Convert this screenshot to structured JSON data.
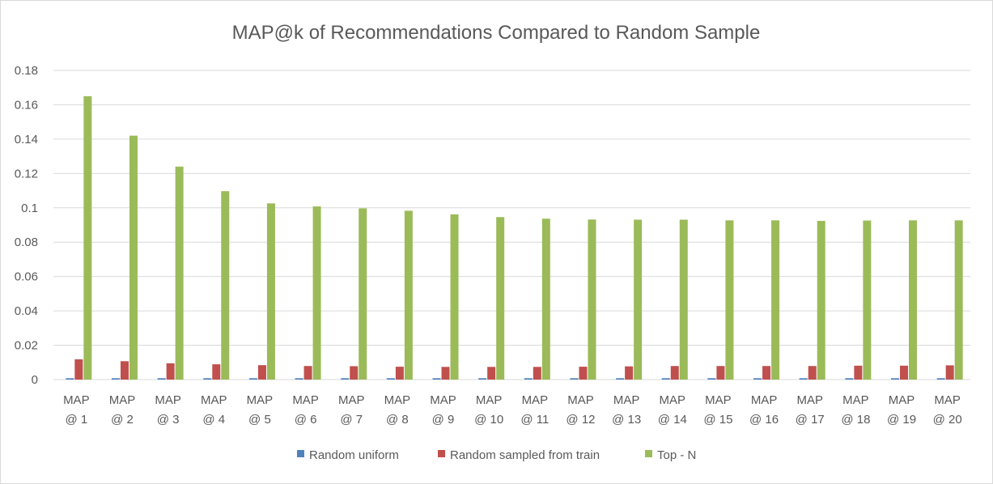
{
  "chart_data": {
    "type": "bar",
    "title": "MAP@k of Recommendations Compared to Random Sample",
    "xlabel": "",
    "ylabel": "",
    "ylim": [
      0,
      0.18
    ],
    "yticks": [
      "0",
      "0.02",
      "0.04",
      "0.06",
      "0.08",
      "0.1",
      "0.12",
      "0.14",
      "0.16",
      "0.18"
    ],
    "ytick_values": [
      0,
      0.02,
      0.04,
      0.06,
      0.08,
      0.1,
      0.12,
      0.14,
      0.16,
      0.18
    ],
    "grid": true,
    "legend_position": "bottom",
    "categories": [
      [
        "MAP",
        "@ 1"
      ],
      [
        "MAP",
        "@ 2"
      ],
      [
        "MAP",
        "@ 3"
      ],
      [
        "MAP",
        "@ 4"
      ],
      [
        "MAP",
        "@ 5"
      ],
      [
        "MAP",
        "@ 6"
      ],
      [
        "MAP",
        "@ 7"
      ],
      [
        "MAP",
        "@ 8"
      ],
      [
        "MAP",
        "@ 9"
      ],
      [
        "MAP",
        "@ 10"
      ],
      [
        "MAP",
        "@ 11"
      ],
      [
        "MAP",
        "@ 12"
      ],
      [
        "MAP",
        "@ 13"
      ],
      [
        "MAP",
        "@ 14"
      ],
      [
        "MAP",
        "@ 15"
      ],
      [
        "MAP",
        "@ 16"
      ],
      [
        "MAP",
        "@ 17"
      ],
      [
        "MAP",
        "@ 18"
      ],
      [
        "MAP",
        "@ 19"
      ],
      [
        "MAP",
        "@ 20"
      ]
    ],
    "series": [
      {
        "name": "Random uniform",
        "color": "#4f81bd",
        "values": [
          0.0008,
          0.0008,
          0.0008,
          0.0008,
          0.0008,
          0.0008,
          0.0008,
          0.0008,
          0.0008,
          0.0008,
          0.0008,
          0.0008,
          0.0008,
          0.0008,
          0.0008,
          0.0008,
          0.0008,
          0.0008,
          0.0008,
          0.0008
        ]
      },
      {
        "name": "Random sampled from train",
        "color": "#c0504d",
        "values": [
          0.0118,
          0.0107,
          0.0095,
          0.0089,
          0.0084,
          0.0079,
          0.0078,
          0.0075,
          0.0074,
          0.0074,
          0.0074,
          0.0075,
          0.0077,
          0.0079,
          0.0079,
          0.0079,
          0.0079,
          0.0081,
          0.0081,
          0.0083
        ]
      },
      {
        "name": "Top - N",
        "color": "#9bbb59",
        "values": [
          0.165,
          0.142,
          0.124,
          0.1097,
          0.1026,
          0.1008,
          0.0997,
          0.0983,
          0.0962,
          0.0946,
          0.0937,
          0.0932,
          0.0931,
          0.0931,
          0.0927,
          0.0927,
          0.0924,
          0.0926,
          0.0927,
          0.0927
        ]
      }
    ]
  }
}
